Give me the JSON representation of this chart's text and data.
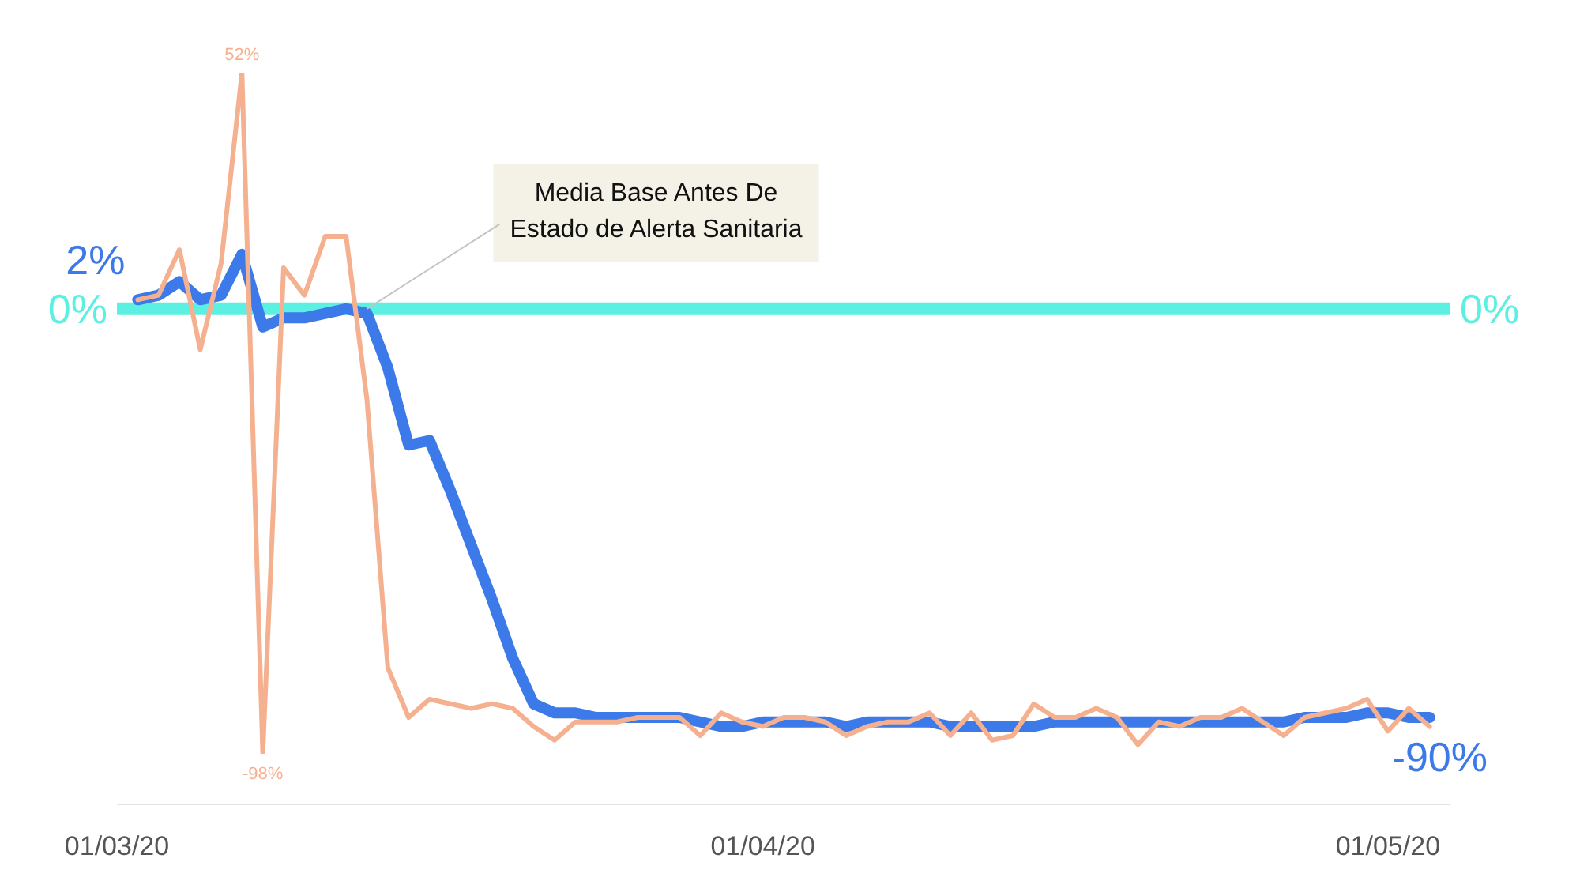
{
  "chart_data": {
    "type": "line",
    "x": [
      "2020-03-02",
      "2020-03-03",
      "2020-03-04",
      "2020-03-05",
      "2020-03-06",
      "2020-03-07",
      "2020-03-08",
      "2020-03-09",
      "2020-03-10",
      "2020-03-11",
      "2020-03-12",
      "2020-03-13",
      "2020-03-14",
      "2020-03-15",
      "2020-03-16",
      "2020-03-17",
      "2020-03-18",
      "2020-03-19",
      "2020-03-20",
      "2020-03-21",
      "2020-03-22",
      "2020-03-23",
      "2020-03-24",
      "2020-03-25",
      "2020-03-26",
      "2020-03-27",
      "2020-03-28",
      "2020-03-29",
      "2020-03-30",
      "2020-03-31",
      "2020-04-01",
      "2020-04-02",
      "2020-04-03",
      "2020-04-04",
      "2020-04-05",
      "2020-04-06",
      "2020-04-07",
      "2020-04-08",
      "2020-04-09",
      "2020-04-10",
      "2020-04-11",
      "2020-04-12",
      "2020-04-13",
      "2020-04-14",
      "2020-04-15",
      "2020-04-16",
      "2020-04-17",
      "2020-04-18",
      "2020-04-19",
      "2020-04-20",
      "2020-04-21",
      "2020-04-22",
      "2020-04-23",
      "2020-04-24",
      "2020-04-25",
      "2020-04-26",
      "2020-04-27",
      "2020-04-28",
      "2020-04-29",
      "2020-04-30",
      "2020-05-01",
      "2020-05-02",
      "2020-05-03"
    ],
    "xlim": [
      "2020-03-01",
      "2020-05-04"
    ],
    "xticks": [
      {
        "value": "2020-03-01",
        "label": "01/03/20"
      },
      {
        "value": "2020-04-01",
        "label": "01/04/20"
      },
      {
        "value": "2020-05-01",
        "label": "01/05/20"
      }
    ],
    "tick_labels": "x",
    "series": [
      {
        "color": "#3b7ae8",
        "values": [
          2,
          3,
          6,
          2,
          3,
          12,
          -4,
          -2,
          -2,
          -1,
          0,
          -1,
          -13,
          -30,
          -29,
          -40,
          -52,
          -64,
          -77,
          -87,
          -89,
          -89,
          -90,
          -90,
          -90,
          -90,
          -90,
          -91,
          -92,
          -92,
          -91,
          -91,
          -91,
          -91,
          -92,
          -91,
          -91,
          -91,
          -91,
          -92,
          -92,
          -92,
          -92,
          -92,
          -91,
          -91,
          -91,
          -91,
          -91,
          -91,
          -91,
          -91,
          -91,
          -91,
          -91,
          -91,
          -90,
          -90,
          -90,
          -89,
          -89,
          -90,
          -90
        ],
        "value_labels": [
          "2%",
          null,
          null,
          null,
          null,
          null,
          null,
          null,
          null,
          null,
          null,
          null,
          null,
          null,
          null,
          null,
          null,
          null,
          null,
          null,
          null,
          null,
          null,
          null,
          null,
          null,
          null,
          null,
          null,
          null,
          null,
          null,
          null,
          null,
          null,
          null,
          null,
          null,
          null,
          null,
          null,
          null,
          null,
          null,
          null,
          null,
          null,
          null,
          null,
          null,
          null,
          null,
          null,
          null,
          null,
          null,
          null,
          null,
          null,
          null,
          null,
          null,
          "-90%"
        ]
      },
      {
        "color": "#f5b18f",
        "values": [
          2,
          3,
          13,
          -9,
          10,
          52,
          -98,
          9,
          3,
          16,
          16,
          -20,
          -79,
          -90,
          -86,
          -87,
          -88,
          -87,
          -88,
          -92,
          -95,
          -91,
          -91,
          -91,
          -90,
          -90,
          -90,
          -94,
          -89,
          -91,
          -92,
          -90,
          -90,
          -91,
          -94,
          -92,
          -91,
          -91,
          -89,
          -94,
          -89,
          -95,
          -94,
          -87,
          -90,
          -90,
          -88,
          -90,
          -96,
          -91,
          -92,
          -90,
          -90,
          -88,
          -91,
          -94,
          -90,
          -89,
          -88,
          -86,
          -93,
          -88,
          -92
        ],
        "value_labels": [
          null,
          null,
          null,
          null,
          null,
          "52%",
          "-98%",
          null,
          null,
          null,
          null,
          null,
          null,
          null,
          null,
          null,
          null,
          null,
          null,
          null,
          null,
          null,
          null,
          null,
          null,
          null,
          null,
          null,
          null,
          null,
          null,
          null,
          null,
          null,
          null,
          null,
          null,
          null,
          null,
          null,
          null,
          null,
          null,
          null,
          null,
          null,
          null,
          null,
          null,
          null,
          null,
          null,
          null,
          null,
          null,
          null,
          null,
          null,
          null,
          null,
          null,
          null,
          null
        ]
      }
    ],
    "ref_lines": [
      {
        "axis": "y",
        "value": 0,
        "label": "0%",
        "color": "#5cf0e2"
      }
    ],
    "annotations": [
      {
        "text": "Media Base Antes De Estado de Alerta Sanitaria",
        "x": "2020-03-13",
        "y": 0
      }
    ]
  }
}
